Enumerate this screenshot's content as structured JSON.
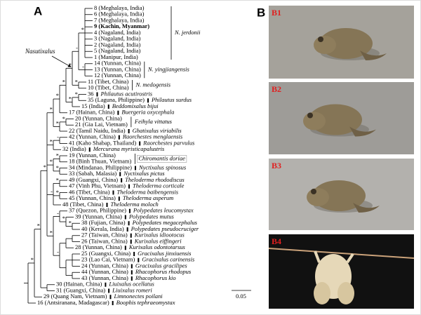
{
  "panel_a": {
    "label": "A",
    "nasutixalus_label": "Nasutixalus",
    "scale_bar": "0.05",
    "leaves": [
      {
        "text": "8 (Meghalaya, India)"
      },
      {
        "text": "6 (Meghalaya, India)"
      },
      {
        "text": "7 (Meghalaya, India)"
      },
      {
        "text": "9 (Kachin, Myanmar)"
      },
      {
        "text": "4 (Nagaland, India)"
      },
      {
        "text": "3 (Nagaland, India)"
      },
      {
        "text": "2 (Nagaland, India)"
      },
      {
        "text": "5 (Nagaland, India)"
      },
      {
        "text": "1 (Manipur, India)"
      },
      {
        "text": "14 (Yunnan, China)"
      },
      {
        "text": "13 (Yunnan, China)"
      },
      {
        "text": "12 (Yunnan, China)"
      },
      {
        "text": "11 (Tibet, China)"
      },
      {
        "text": "10 (Tibet, China)"
      },
      {
        "text": "36",
        "species": "Philautus acutirostris"
      },
      {
        "text": "35 (Laguna, Philippine)",
        "species": "Philautus surdus"
      },
      {
        "text": "15 (India)",
        "species": "Beddomixalus bijui"
      },
      {
        "text": "17 (Hainan, China)",
        "species": "Buergeria oxycephala"
      },
      {
        "text": "20 (Yunnan, China)"
      },
      {
        "text": "21 (Gia Lai, Vietnam)"
      },
      {
        "text": "22 (Tamil Naidu, India)",
        "species": "Ghatixalus viriabilis"
      },
      {
        "text": "42 (Yunnan, China)",
        "species": "Raorchestes menglaensis"
      },
      {
        "text": "41 (Kaho Shabap, Thailand)",
        "species": "Raorchestes parvulus"
      },
      {
        "text": "32 (India)",
        "species": "Mercurana myristicapalustris"
      },
      {
        "text": "19 (Yunnan, China)"
      },
      {
        "text": "18 (Binh Thuan, Vietnam)"
      },
      {
        "text": "34 (Mindanao, Philippine)",
        "species": "Nyctixalus spinosus"
      },
      {
        "text": "33 (Sabah, Malasia)",
        "species": "Nyctixalus pictus"
      },
      {
        "text": "49 (Guangxi, China)",
        "species": "Theloderma rhododiscus"
      },
      {
        "text": "47 (Vinh Phu, Vietnam)",
        "species": "Theloderma corticale"
      },
      {
        "text": "46 (Tibet, China)",
        "species": "Theloderma baibengensis"
      },
      {
        "text": "45 (Yunnan, China)",
        "species": "Theloderma asperum"
      },
      {
        "text": "48 (Tibet, China)",
        "species": "Theloderma moloch"
      },
      {
        "text": "37 (Quezon, Philippine)",
        "species": "Polypedates leucomystax"
      },
      {
        "text": "39 (Yunnan, China)",
        "species": "Polypedates mutus"
      },
      {
        "text": "38 (Fujian, China)",
        "species": "Polypedates megacephalus"
      },
      {
        "text": "40 (Kerala, India)",
        "species": "Polypedates pseudocruciger"
      },
      {
        "text": "27 (Taiwan, China)",
        "species": "Kurixalus idiootocus"
      },
      {
        "text": "26 (Taiwan, China)",
        "species": "Kurixalus eiffingeri"
      },
      {
        "text": "28 (Yunnan, China)",
        "species": "Kurixalus odontotarsus"
      },
      {
        "text": "25 (Guangxi, China)",
        "species": "Gracixalus jinxiuensis"
      },
      {
        "text": "23 (Lao Cai, Vietnam)",
        "species": "Gracixalus carinensis"
      },
      {
        "text": "24 (Yunnan, China)",
        "species": "Gracixalus gracilipes"
      },
      {
        "text": "44 (Yunnan, China)",
        "species": "Rhacophorus rhodopus"
      },
      {
        "text": "43 (Yunnan, China)",
        "species": "Rhacophorus kio"
      },
      {
        "text": "30 (Hainan, China)",
        "species": "Liuixalus ocellatus"
      },
      {
        "text": "31 (Guangxi, China)",
        "species": "Liuixalus romeri"
      },
      {
        "text": "29 (Quang Nam, Vietnam)",
        "species": "Limnonectes poilani"
      },
      {
        "text": "16 (Antsiranana, Madagascar)",
        "species": "Boophis tephraeomystax"
      }
    ],
    "groups": [
      {
        "label": "N. jerdonii"
      },
      {
        "label": "N. yingjiangensis"
      },
      {
        "label": "N. medogensis"
      },
      {
        "label": "Feihyla vittatus"
      },
      {
        "label": "Chiromantis doriae"
      }
    ],
    "supports": [
      "*",
      "*",
      "*",
      "*",
      "*",
      "*",
      "*",
      "-",
      "*",
      "-",
      "*",
      "*",
      "*",
      "*",
      "*",
      "*",
      "-",
      "*",
      "*",
      "*",
      "-",
      "*",
      "*",
      "*",
      "-",
      "*",
      "*",
      "-"
    ]
  },
  "panel_b": {
    "label": "B",
    "photos": [
      {
        "label": "B1"
      },
      {
        "label": "B2"
      },
      {
        "label": "B3"
      },
      {
        "label": "B4"
      }
    ]
  }
}
